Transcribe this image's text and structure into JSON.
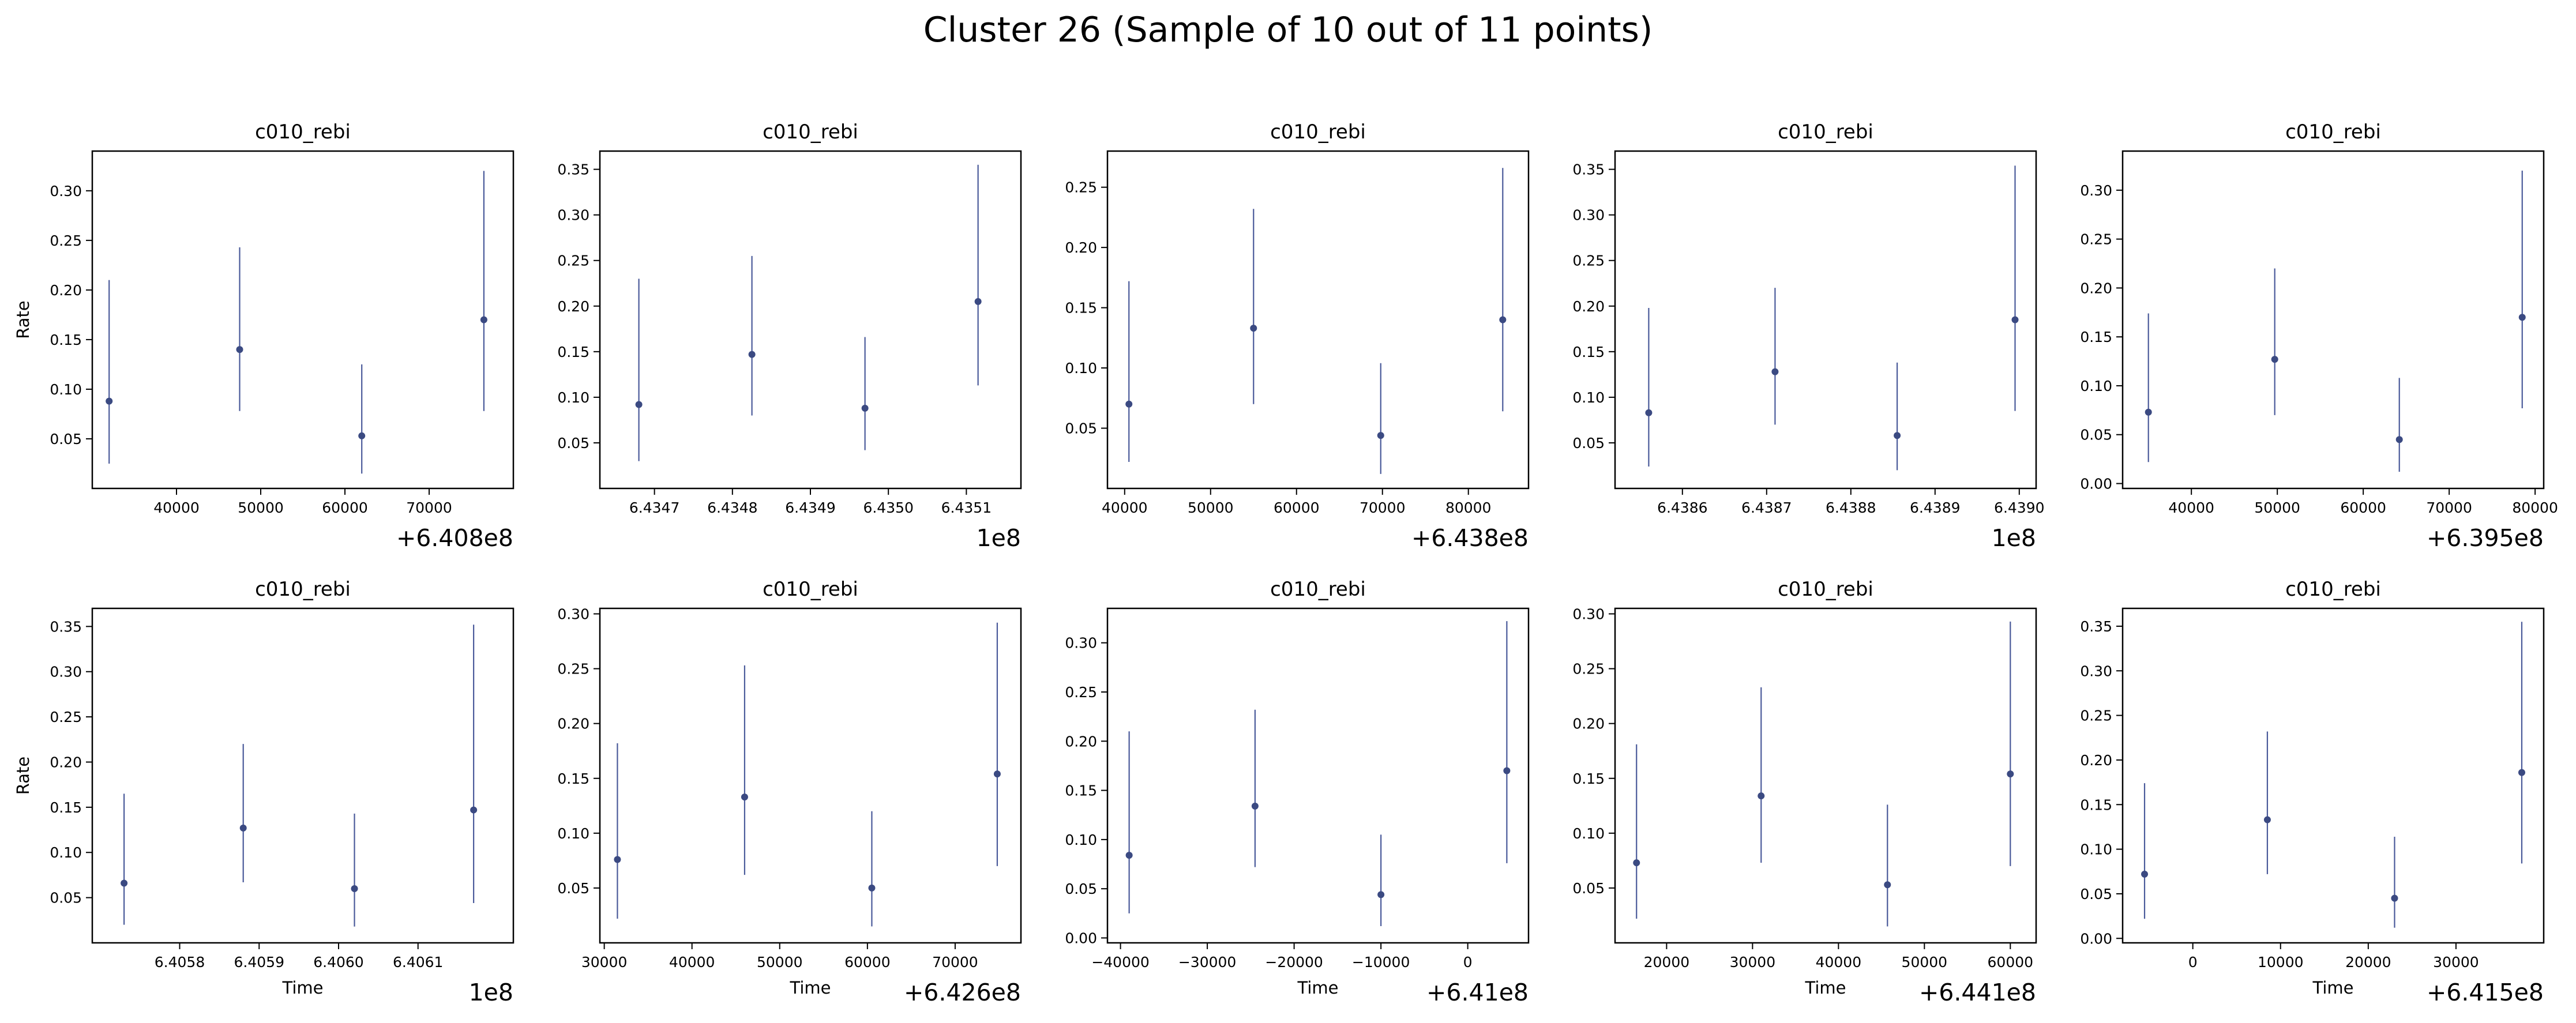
{
  "figure": {
    "title": "Cluster 26 (Sample of 10 out of 11 points)"
  },
  "colors": {
    "point": "#3b4a82",
    "errorbar": "#4a5a9a",
    "axis": "#000000"
  },
  "chart_data": [
    {
      "type": "scatter",
      "title": "c010_rebi",
      "xlabel": "",
      "ylabel": "Rate",
      "x_offset_label": "+6.408e8",
      "xlim": [
        30000,
        80000
      ],
      "ylim": [
        0.0,
        0.34
      ],
      "xticks": [
        40000,
        50000,
        60000,
        70000
      ],
      "xtick_labels": [
        "40000",
        "50000",
        "60000",
        "70000"
      ],
      "yticks": [
        0.05,
        0.1,
        0.15,
        0.2,
        0.25,
        0.3
      ],
      "ytick_labels": [
        "0.05",
        "0.10",
        "0.15",
        "0.20",
        "0.25",
        "0.30"
      ],
      "points": [
        {
          "x": 32000,
          "y": 0.088,
          "lo": 0.025,
          "hi": 0.21
        },
        {
          "x": 47500,
          "y": 0.14,
          "lo": 0.078,
          "hi": 0.243
        },
        {
          "x": 62000,
          "y": 0.053,
          "lo": 0.015,
          "hi": 0.125
        },
        {
          "x": 76500,
          "y": 0.17,
          "lo": 0.078,
          "hi": 0.32
        }
      ]
    },
    {
      "type": "scatter",
      "title": "c010_rebi",
      "xlabel": "",
      "ylabel": "",
      "x_offset_label": "1e8",
      "xlim": [
        6.43463,
        6.43517
      ],
      "ylim": [
        0.0,
        0.37
      ],
      "xticks": [
        6.4347,
        6.4348,
        6.4349,
        6.435,
        6.4351
      ],
      "xtick_labels": [
        "6.4347",
        "6.4348",
        "6.4349",
        "6.4350",
        "6.4351"
      ],
      "yticks": [
        0.05,
        0.1,
        0.15,
        0.2,
        0.25,
        0.3,
        0.35
      ],
      "ytick_labels": [
        "0.05",
        "0.10",
        "0.15",
        "0.20",
        "0.25",
        "0.30",
        "0.35"
      ],
      "points": [
        {
          "x": 6.43468,
          "y": 0.092,
          "lo": 0.03,
          "hi": 0.23
        },
        {
          "x": 6.434825,
          "y": 0.147,
          "lo": 0.08,
          "hi": 0.255
        },
        {
          "x": 6.43497,
          "y": 0.088,
          "lo": 0.042,
          "hi": 0.166
        },
        {
          "x": 6.435115,
          "y": 0.205,
          "lo": 0.113,
          "hi": 0.355
        }
      ]
    },
    {
      "type": "scatter",
      "title": "c010_rebi",
      "xlabel": "",
      "ylabel": "",
      "x_offset_label": "+6.438e8",
      "xlim": [
        38000,
        87000
      ],
      "ylim": [
        0.0,
        0.28
      ],
      "xticks": [
        40000,
        50000,
        60000,
        70000,
        80000
      ],
      "xtick_labels": [
        "40000",
        "50000",
        "60000",
        "70000",
        "80000"
      ],
      "yticks": [
        0.05,
        0.1,
        0.15,
        0.2,
        0.25
      ],
      "ytick_labels": [
        "0.05",
        "0.10",
        "0.15",
        "0.20",
        "0.25"
      ],
      "points": [
        {
          "x": 40500,
          "y": 0.07,
          "lo": 0.022,
          "hi": 0.172
        },
        {
          "x": 55000,
          "y": 0.133,
          "lo": 0.07,
          "hi": 0.232
        },
        {
          "x": 69800,
          "y": 0.044,
          "lo": 0.012,
          "hi": 0.104
        },
        {
          "x": 84000,
          "y": 0.14,
          "lo": 0.064,
          "hi": 0.266
        }
      ]
    },
    {
      "type": "scatter",
      "title": "c010_rebi",
      "xlabel": "",
      "ylabel": "",
      "x_offset_label": "1e8",
      "xlim": [
        6.43852,
        6.43902
      ],
      "ylim": [
        0.0,
        0.37
      ],
      "xticks": [
        6.4386,
        6.4387,
        6.4388,
        6.4389,
        6.439
      ],
      "xtick_labels": [
        "6.4386",
        "6.4387",
        "6.4388",
        "6.4389",
        "6.4390"
      ],
      "yticks": [
        0.05,
        0.1,
        0.15,
        0.2,
        0.25,
        0.3,
        0.35
      ],
      "ytick_labels": [
        "0.05",
        "0.10",
        "0.15",
        "0.20",
        "0.25",
        "0.30",
        "0.35"
      ],
      "points": [
        {
          "x": 6.43856,
          "y": 0.083,
          "lo": 0.024,
          "hi": 0.198
        },
        {
          "x": 6.43871,
          "y": 0.128,
          "lo": 0.07,
          "hi": 0.22
        },
        {
          "x": 6.438855,
          "y": 0.058,
          "lo": 0.02,
          "hi": 0.138
        },
        {
          "x": 6.438995,
          "y": 0.185,
          "lo": 0.085,
          "hi": 0.354
        }
      ]
    },
    {
      "type": "scatter",
      "title": "c010_rebi",
      "xlabel": "",
      "ylabel": "",
      "x_offset_label": "+6.395e8",
      "xlim": [
        32000,
        81000
      ],
      "ylim": [
        -0.005,
        0.34
      ],
      "xticks": [
        40000,
        50000,
        60000,
        70000,
        80000
      ],
      "xtick_labels": [
        "40000",
        "50000",
        "60000",
        "70000",
        "80000"
      ],
      "yticks": [
        0.0,
        0.05,
        0.1,
        0.15,
        0.2,
        0.25,
        0.3
      ],
      "ytick_labels": [
        "0.00",
        "0.05",
        "0.10",
        "0.15",
        "0.20",
        "0.25",
        "0.30"
      ],
      "points": [
        {
          "x": 35000,
          "y": 0.073,
          "lo": 0.022,
          "hi": 0.174
        },
        {
          "x": 49700,
          "y": 0.127,
          "lo": 0.07,
          "hi": 0.22
        },
        {
          "x": 64200,
          "y": 0.045,
          "lo": 0.012,
          "hi": 0.108
        },
        {
          "x": 78500,
          "y": 0.17,
          "lo": 0.077,
          "hi": 0.32
        }
      ]
    },
    {
      "type": "scatter",
      "title": "c010_rebi",
      "xlabel": "Time",
      "ylabel": "Rate",
      "x_offset_label": "1e8",
      "xlim": [
        6.40569,
        6.40622
      ],
      "ylim": [
        0.0,
        0.37
      ],
      "xticks": [
        6.4058,
        6.4059,
        6.406,
        6.4061
      ],
      "xtick_labels": [
        "6.4058",
        "6.4059",
        "6.4060",
        "6.4061"
      ],
      "yticks": [
        0.05,
        0.1,
        0.15,
        0.2,
        0.25,
        0.3,
        0.35
      ],
      "ytick_labels": [
        "0.05",
        "0.10",
        "0.15",
        "0.20",
        "0.25",
        "0.30",
        "0.35"
      ],
      "points": [
        {
          "x": 6.40573,
          "y": 0.066,
          "lo": 0.02,
          "hi": 0.165
        },
        {
          "x": 6.40588,
          "y": 0.127,
          "lo": 0.067,
          "hi": 0.22
        },
        {
          "x": 6.40602,
          "y": 0.06,
          "lo": 0.018,
          "hi": 0.143
        },
        {
          "x": 6.40617,
          "y": 0.147,
          "lo": 0.044,
          "hi": 0.352
        }
      ]
    },
    {
      "type": "scatter",
      "title": "c010_rebi",
      "xlabel": "Time",
      "ylabel": "",
      "x_offset_label": "+6.426e8",
      "xlim": [
        29500,
        77500
      ],
      "ylim": [
        0.0,
        0.305
      ],
      "xticks": [
        30000,
        40000,
        50000,
        60000,
        70000
      ],
      "xtick_labels": [
        "30000",
        "40000",
        "50000",
        "60000",
        "70000"
      ],
      "yticks": [
        0.05,
        0.1,
        0.15,
        0.2,
        0.25,
        0.3
      ],
      "ytick_labels": [
        "0.05",
        "0.10",
        "0.15",
        "0.20",
        "0.25",
        "0.30"
      ],
      "points": [
        {
          "x": 31500,
          "y": 0.076,
          "lo": 0.022,
          "hi": 0.182
        },
        {
          "x": 46000,
          "y": 0.133,
          "lo": 0.062,
          "hi": 0.253
        },
        {
          "x": 60500,
          "y": 0.05,
          "lo": 0.015,
          "hi": 0.12
        },
        {
          "x": 74800,
          "y": 0.154,
          "lo": 0.07,
          "hi": 0.292
        }
      ]
    },
    {
      "type": "scatter",
      "title": "c010_rebi",
      "xlabel": "Time",
      "ylabel": "",
      "x_offset_label": "+6.41e8",
      "xlim": [
        -41500,
        7000
      ],
      "ylim": [
        -0.005,
        0.335
      ],
      "xticks": [
        -40000,
        -30000,
        -20000,
        -10000,
        0
      ],
      "xtick_labels": [
        "−40000",
        "−30000",
        "−20000",
        "−10000",
        "0"
      ],
      "yticks": [
        0.0,
        0.05,
        0.1,
        0.15,
        0.2,
        0.25,
        0.3
      ],
      "ytick_labels": [
        "0.00",
        "0.05",
        "0.10",
        "0.15",
        "0.20",
        "0.25",
        "0.30"
      ],
      "points": [
        {
          "x": -39000,
          "y": 0.084,
          "lo": 0.025,
          "hi": 0.21
        },
        {
          "x": -24500,
          "y": 0.134,
          "lo": 0.072,
          "hi": 0.232
        },
        {
          "x": -10000,
          "y": 0.044,
          "lo": 0.012,
          "hi": 0.105
        },
        {
          "x": 4500,
          "y": 0.17,
          "lo": 0.076,
          "hi": 0.322
        }
      ]
    },
    {
      "type": "scatter",
      "title": "c010_rebi",
      "xlabel": "Time",
      "ylabel": "",
      "x_offset_label": "+6.441e8",
      "xlim": [
        14000,
        63000
      ],
      "ylim": [
        0.0,
        0.305
      ],
      "xticks": [
        20000,
        30000,
        40000,
        50000,
        60000
      ],
      "xtick_labels": [
        "20000",
        "30000",
        "40000",
        "50000",
        "60000"
      ],
      "yticks": [
        0.05,
        0.1,
        0.15,
        0.2,
        0.25,
        0.3
      ],
      "ytick_labels": [
        "0.05",
        "0.10",
        "0.15",
        "0.20",
        "0.25",
        "0.30"
      ],
      "points": [
        {
          "x": 16500,
          "y": 0.073,
          "lo": 0.022,
          "hi": 0.181
        },
        {
          "x": 31000,
          "y": 0.134,
          "lo": 0.073,
          "hi": 0.233
        },
        {
          "x": 45700,
          "y": 0.053,
          "lo": 0.015,
          "hi": 0.126
        },
        {
          "x": 60000,
          "y": 0.154,
          "lo": 0.07,
          "hi": 0.293
        }
      ]
    },
    {
      "type": "scatter",
      "title": "c010_rebi",
      "xlabel": "Time",
      "ylabel": "",
      "x_offset_label": "+6.415e8",
      "xlim": [
        -8000,
        40000
      ],
      "ylim": [
        -0.005,
        0.37
      ],
      "xticks": [
        0,
        10000,
        20000,
        30000
      ],
      "xtick_labels": [
        "0",
        "10000",
        "20000",
        "30000"
      ],
      "yticks": [
        0.0,
        0.05,
        0.1,
        0.15,
        0.2,
        0.25,
        0.3,
        0.35
      ],
      "ytick_labels": [
        "0.00",
        "0.05",
        "0.10",
        "0.15",
        "0.20",
        "0.25",
        "0.30",
        "0.35"
      ],
      "points": [
        {
          "x": -5500,
          "y": 0.072,
          "lo": 0.022,
          "hi": 0.174
        },
        {
          "x": 8500,
          "y": 0.133,
          "lo": 0.072,
          "hi": 0.232
        },
        {
          "x": 23000,
          "y": 0.045,
          "lo": 0.012,
          "hi": 0.114
        },
        {
          "x": 37500,
          "y": 0.186,
          "lo": 0.084,
          "hi": 0.355
        }
      ]
    }
  ]
}
